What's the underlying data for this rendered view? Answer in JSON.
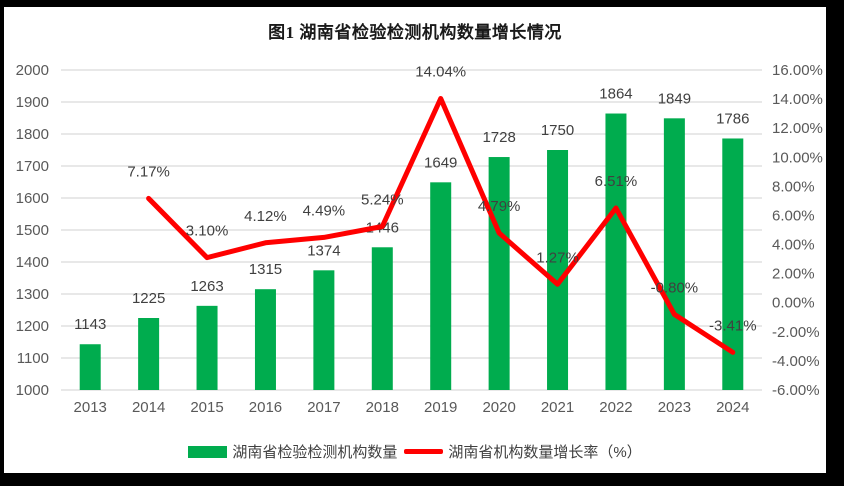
{
  "frame": {
    "background": "#000000",
    "chart_background": "#ffffff"
  },
  "chart_data": {
    "type": "combo-bar-line",
    "title": "图1 湖南省检验检测机构数量增长情况",
    "categories": [
      "2013",
      "2014",
      "2015",
      "2016",
      "2017",
      "2018",
      "2019",
      "2020",
      "2021",
      "2022",
      "2023",
      "2024"
    ],
    "series": [
      {
        "name": "湖南省检验检测机构数量",
        "type": "bar",
        "axis": "left",
        "color": "#00AC4E",
        "values": [
          1143,
          1225,
          1263,
          1315,
          1374,
          1446,
          1649,
          1728,
          1750,
          1864,
          1849,
          1786
        ],
        "labels": [
          "1143",
          "1225",
          "1263",
          "1315",
          "1374",
          "1446",
          "1649",
          "1728",
          "1750",
          "1864",
          "1849",
          "1786"
        ]
      },
      {
        "name": "湖南省机构数量增长率（%）",
        "type": "line",
        "axis": "right",
        "color": "#FF0000",
        "values": [
          null,
          7.17,
          3.1,
          4.12,
          4.49,
          5.24,
          14.04,
          4.79,
          1.27,
          6.51,
          -0.8,
          -3.41
        ],
        "labels": [
          "",
          "7.17%",
          "3.10%",
          "4.12%",
          "4.49%",
          "5.24%",
          "14.04%",
          "4.79%",
          "1.27%",
          "6.51%",
          "-0.80%",
          "-3.41%"
        ]
      }
    ],
    "left_axis": {
      "min": 1000,
      "max": 2000,
      "step": 100,
      "tick_labels": [
        "2000",
        "1900",
        "1800",
        "1700",
        "1600",
        "1500",
        "1400",
        "1300",
        "1200",
        "1100",
        "1000"
      ]
    },
    "right_axis": {
      "min": -6,
      "max": 16,
      "step": 2,
      "tick_labels": [
        "16.00%",
        "14.00%",
        "12.00%",
        "10.00%",
        "8.00%",
        "6.00%",
        "4.00%",
        "2.00%",
        "0.00%",
        "-2.00%",
        "-4.00%",
        "-6.00%"
      ]
    },
    "grid": true,
    "legend_position": "bottom",
    "colors": {
      "bar": "#00AC4E",
      "line": "#FF0000",
      "grid": "#D9D9D9",
      "axis_text": "#595959",
      "data_label": "#404040",
      "title": "#1A1A1A"
    }
  }
}
